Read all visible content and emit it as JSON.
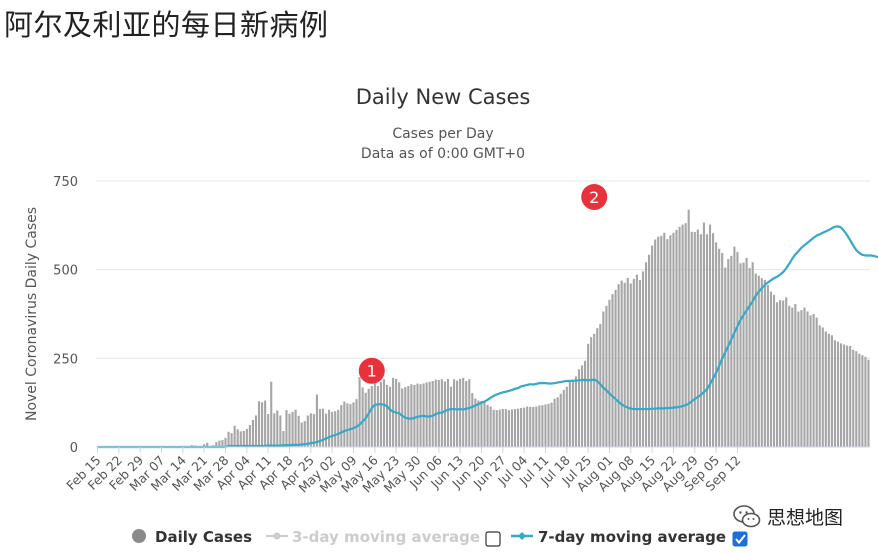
{
  "page": {
    "heading": "阿尔及利亚的每日新病例",
    "watermark_text": "思想地图",
    "watermark_icon": "wechat-icon"
  },
  "chart_data": {
    "type": "bar",
    "title": "Daily New Cases",
    "subtitle": "Cases per Day",
    "subtitle2": "Data as of 0:00 GMT+0",
    "ylabel": "Novel Coronavirus Daily Cases",
    "xlabel": "",
    "ylim": [
      0,
      750
    ],
    "yticks": [
      0,
      250,
      500,
      750
    ],
    "grid": true,
    "date_start": "Feb 15",
    "xtick_labels": [
      "Feb 15",
      "Feb 22",
      "Feb 29",
      "Mar 07",
      "Mar 14",
      "Mar 21",
      "Mar 28",
      "Apr 04",
      "Apr 11",
      "Apr 18",
      "Apr 25",
      "May 02",
      "May 09",
      "May 16",
      "May 23",
      "May 30",
      "Jun 06",
      "Jun 13",
      "Jun 20",
      "Jun 27",
      "Jul 04",
      "Jul 11",
      "Jul 18",
      "Jul 25",
      "Aug 01",
      "Aug 08",
      "Aug 15",
      "Aug 22",
      "Aug 29",
      "Sep 05",
      "Sep 12"
    ],
    "series": [
      {
        "name": "Daily Cases",
        "kind": "bar",
        "color": "#a6a6a6",
        "values": [
          0,
          0,
          0,
          0,
          0,
          0,
          0,
          0,
          0,
          0,
          0,
          0,
          0,
          0,
          0,
          1,
          0,
          0,
          0,
          0,
          2,
          0,
          0,
          0,
          1,
          3,
          0,
          2,
          0,
          2,
          1,
          5,
          4,
          2,
          3,
          8,
          12,
          2,
          5,
          14,
          18,
          20,
          26,
          43,
          39,
          60,
          50,
          44,
          45,
          51,
          62,
          76,
          89,
          129,
          126,
          131,
          93,
          184,
          95,
          103,
          89,
          45,
          104,
          94,
          99,
          105,
          88,
          69,
          73,
          89,
          95,
          93,
          148,
          107,
          108,
          94,
          105,
          99,
          101,
          105,
          118,
          128,
          123,
          121,
          126,
          135,
          197,
          168,
          153,
          164,
          172,
          185,
          172,
          183,
          191,
          175,
          170,
          195,
          192,
          182,
          165,
          169,
          172,
          177,
          175,
          179,
          177,
          179,
          182,
          184,
          186,
          190,
          189,
          191,
          185,
          192,
          170,
          191,
          187,
          192,
          195,
          186,
          191,
          152,
          137,
          131,
          130,
          128,
          119,
          114,
          105,
          104,
          105,
          107,
          107,
          104,
          106,
          107,
          108,
          110,
          111,
          114,
          113,
          113,
          114,
          117,
          118,
          120,
          122,
          125,
          136,
          140,
          150,
          161,
          170,
          185,
          188,
          199,
          219,
          230,
          243,
          291,
          310,
          319,
          335,
          347,
          382,
          398,
          415,
          431,
          443,
          459,
          469,
          463,
          477,
          461,
          474,
          486,
          471,
          495,
          521,
          542,
          568,
          585,
          593,
          595,
          604,
          586,
          597,
          604,
          612,
          621,
          627,
          631,
          669,
          607,
          606,
          613,
          600,
          633,
          600,
          627,
          603,
          577,
          559,
          547,
          506,
          530,
          539,
          565,
          550,
          518,
          520,
          533,
          505,
          521,
          489,
          483,
          476,
          471,
          457,
          438,
          429,
          408,
          414,
          413,
          422,
          398,
          393,
          403,
          382,
          386,
          393,
          382,
          371,
          375,
          365,
          343,
          337,
          326,
          319,
          315,
          301,
          297,
          292,
          289,
          286,
          285,
          274,
          270,
          263,
          259,
          254,
          246
        ]
      },
      {
        "name": "3-day moving average",
        "kind": "line",
        "color": "#cccccc",
        "visible": false
      },
      {
        "name": "7-day moving average",
        "kind": "line",
        "color": "#36a8c8",
        "values": [
          0,
          0,
          0,
          0,
          0,
          0,
          0,
          0,
          0,
          0,
          0,
          0,
          0,
          0,
          0,
          0,
          0,
          0,
          0,
          0,
          0,
          0,
          0,
          0,
          0,
          0,
          0,
          0,
          0,
          0,
          0,
          0,
          0,
          0,
          0,
          0,
          0,
          0,
          0,
          0,
          0,
          0,
          0,
          3,
          3,
          3,
          3,
          3,
          3,
          3,
          3,
          3,
          3,
          3,
          3,
          3,
          4,
          4,
          4,
          4,
          4,
          5,
          5,
          5,
          6,
          6,
          6,
          7,
          8,
          9,
          11,
          12,
          14,
          17,
          20,
          24,
          28,
          31,
          34,
          37,
          41,
          45,
          48,
          50,
          53,
          57,
          63,
          72,
          81,
          95,
          110,
          119,
          120,
          121,
          119,
          115,
          105,
          100,
          97,
          95,
          88,
          83,
          80,
          80,
          82,
          85,
          87,
          88,
          86,
          86,
          88,
          93,
          96,
          97,
          101,
          105,
          107,
          107,
          106,
          107,
          106,
          108,
          110,
          113,
          117,
          121,
          125,
          128,
          133,
          139,
          144,
          148,
          151,
          154,
          156,
          158,
          161,
          164,
          166,
          171,
          173,
          175,
          177,
          176,
          178,
          180,
          180,
          180,
          179,
          179,
          180,
          182,
          183,
          185,
          186,
          186,
          187,
          187,
          188,
          189,
          189,
          188,
          189,
          190,
          186,
          177,
          167,
          160,
          151,
          143,
          135,
          127,
          120,
          115,
          111,
          108,
          107,
          107,
          107,
          107,
          107,
          107,
          108,
          108,
          109,
          109,
          109,
          110,
          110,
          111,
          112,
          113,
          115,
          118,
          122,
          129,
          135,
          141,
          147,
          155,
          163,
          177,
          193,
          209,
          228,
          249,
          267,
          285,
          303,
          322,
          340,
          358,
          372,
          385,
          398,
          411,
          427,
          438,
          448,
          457,
          464,
          470,
          476,
          480,
          486,
          493,
          504,
          517,
          531,
          543,
          552,
          562,
          569,
          576,
          583,
          590,
          596,
          600,
          604,
          608,
          612,
          617,
          621,
          622,
          619,
          609,
          597,
          583,
          568,
          555,
          547,
          542,
          540,
          540,
          540,
          538,
          536,
          532,
          527,
          520,
          512,
          503,
          494,
          486,
          479,
          472,
          463,
          454,
          445,
          437,
          428,
          420,
          412,
          405,
          400,
          398,
          396,
          394,
          391,
          389,
          386,
          382,
          377,
          370,
          362,
          353,
          344,
          335,
          326,
          318,
          309,
          301,
          294,
          289,
          284,
          279,
          275,
          270
        ]
      }
    ],
    "annotations": [
      {
        "label": "1",
        "date": "May 15",
        "value": 215,
        "color": "#e8313a"
      },
      {
        "label": "2",
        "date": "Jul 27",
        "value": 705,
        "color": "#e8313a"
      }
    ],
    "legend": {
      "placement": "bottom",
      "items": [
        {
          "label": "Daily Cases",
          "active": true
        },
        {
          "label": "3-day moving average",
          "active": false,
          "checkbox_checked": false
        },
        {
          "label": "7-day moving average",
          "active": true,
          "checkbox_checked": true
        }
      ]
    }
  }
}
